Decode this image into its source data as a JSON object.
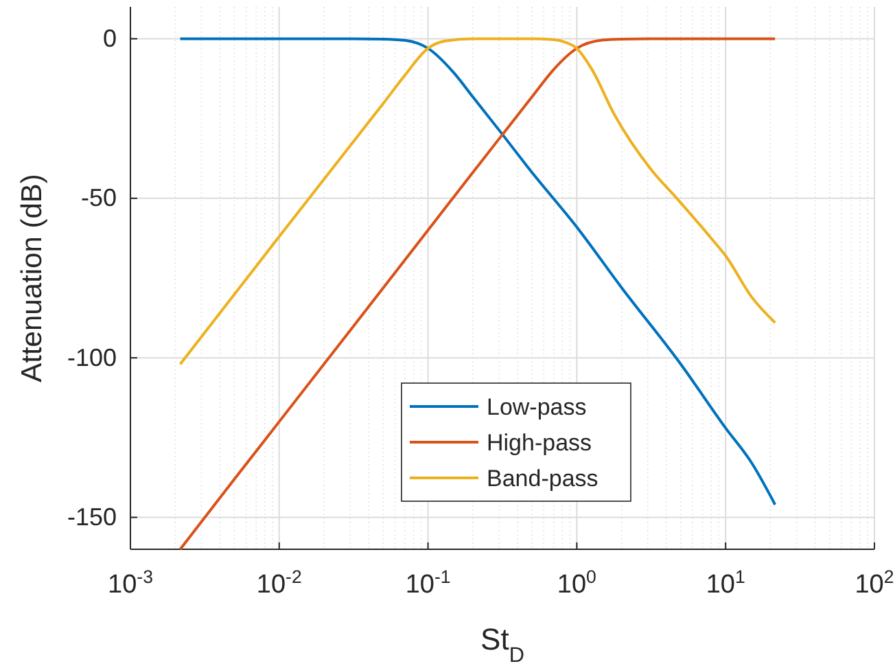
{
  "chart_data": {
    "type": "line",
    "xlabel": "St$_{D}$",
    "ylabel": "Attenuation (dB)",
    "log": "x",
    "grid": true,
    "legend": "bottom",
    "line_style": "solid",
    "marker": "none",
    "xlim": [
      0.001,
      100
    ],
    "xticks": [
      {
        "value": 0.001,
        "label": "10$^{-3}$"
      },
      {
        "value": 0.01,
        "label": "10$^{-2}$"
      },
      {
        "value": 0.1,
        "label": "10$^{-1}$"
      },
      {
        "value": 1,
        "label": "10$^{0}$"
      },
      {
        "value": 10,
        "label": "10$^{1}$"
      },
      {
        "value": 100,
        "label": "10$^{2}$"
      }
    ],
    "ylim": [
      -160,
      10
    ],
    "yticks": [
      -150,
      -100,
      -50,
      0
    ],
    "series": [
      {
        "name": "Low-pass",
        "color": "#0072bd",
        "x": [
          0.00216,
          0.01,
          0.03,
          0.05,
          0.07,
          0.1,
          0.15,
          0.2,
          0.3,
          0.5,
          1,
          2,
          5,
          10,
          15,
          21.5
        ],
        "values": [
          0,
          0,
          0,
          -0.1,
          -0.5,
          -3,
          -10.8,
          -18.2,
          -28.6,
          -41.9,
          -59,
          -78,
          -102,
          -122,
          -133,
          -146
        ]
      },
      {
        "name": "High-pass",
        "color": "#d95319",
        "x": [
          0.00216,
          0.005,
          0.01,
          0.03,
          0.1,
          0.2,
          0.3,
          0.5,
          0.7,
          1,
          1.5,
          2,
          3,
          21.5
        ],
        "values": [
          -160,
          -138,
          -120,
          -91.4,
          -60,
          -41.9,
          -31.4,
          -18.2,
          -9.6,
          -3,
          -0.4,
          -0.1,
          0,
          0
        ]
      },
      {
        "name": "Band-pass",
        "color": "#edb120",
        "x": [
          0.00216,
          0.01,
          0.03,
          0.05,
          0.07,
          0.1,
          0.13,
          0.2,
          0.3,
          0.5,
          0.7,
          0.85,
          1,
          1.26,
          1.79,
          3.16,
          4.7,
          8,
          10,
          15,
          21.5
        ],
        "values": [
          -102,
          -62,
          -33.5,
          -20.3,
          -11.4,
          -3,
          -0.7,
          0,
          0,
          0,
          -0.3,
          -1.2,
          -3,
          -9.5,
          -23.8,
          -41,
          -50,
          -62.5,
          -68,
          -81,
          -89
        ]
      }
    ]
  }
}
